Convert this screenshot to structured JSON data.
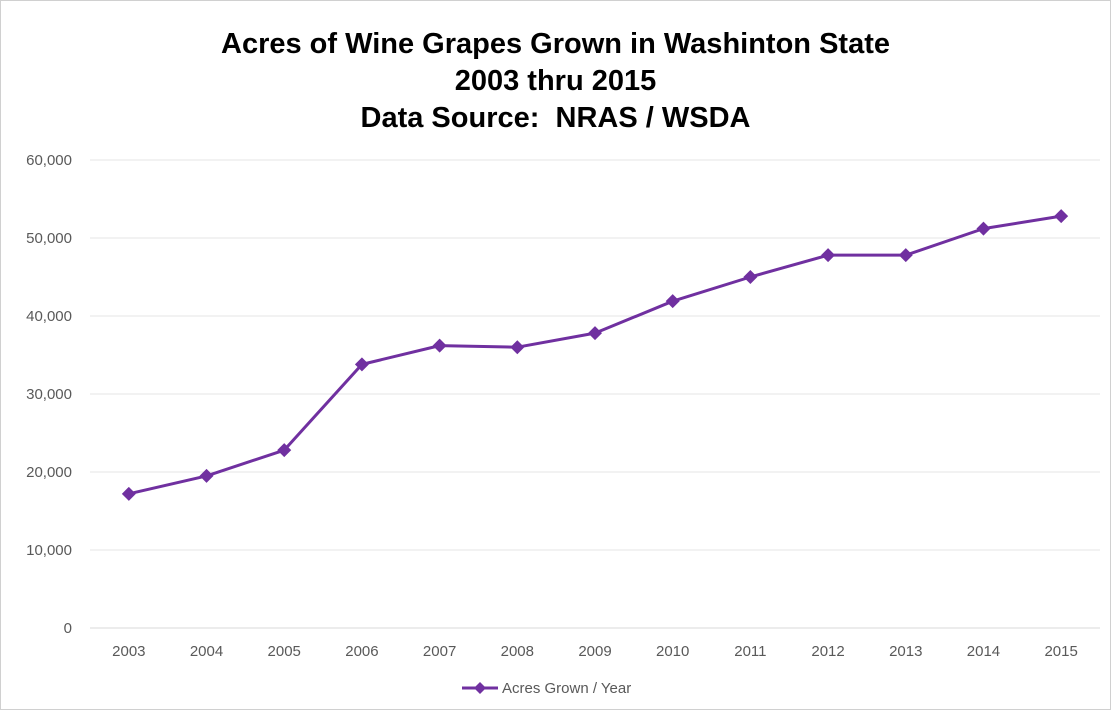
{
  "chart_data": {
    "type": "line",
    "title": [
      "Acres of Wine Grapes Grown in Washinton State",
      "2003 thru 2015",
      "Data Source:  NRAS / WSDA"
    ],
    "xlabel": "",
    "ylabel": "",
    "categories": [
      "2003",
      "2004",
      "2005",
      "2006",
      "2007",
      "2008",
      "2009",
      "2010",
      "2011",
      "2012",
      "2013",
      "2014",
      "2015"
    ],
    "series": [
      {
        "name": "Acres Grown / Year",
        "color": "#7030A0",
        "marker": "diamond",
        "values": [
          17200,
          19500,
          22800,
          33800,
          36200,
          36000,
          37800,
          41900,
          45000,
          47800,
          47800,
          51200,
          52800
        ]
      }
    ],
    "ylim": [
      0,
      60000
    ],
    "yticks": [
      0,
      10000,
      20000,
      30000,
      40000,
      50000,
      60000
    ],
    "ytick_labels": [
      "0",
      "10,000",
      "20,000",
      "30,000",
      "40,000",
      "50,000",
      "60,000"
    ],
    "grid": true,
    "legend_position": "bottom"
  }
}
